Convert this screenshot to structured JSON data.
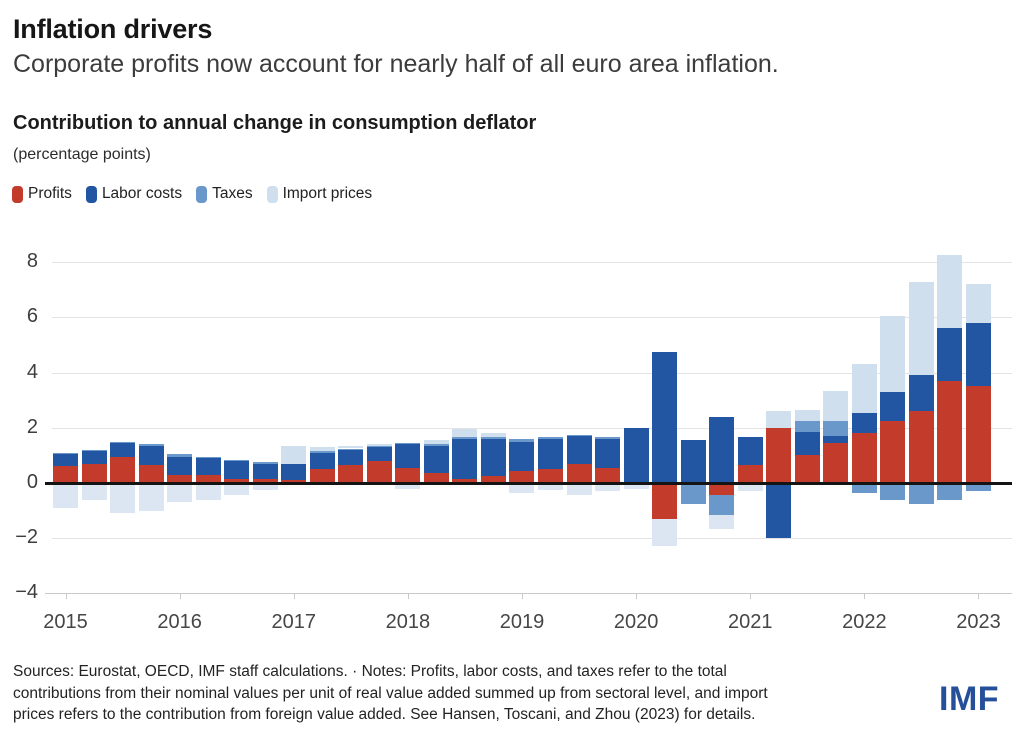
{
  "header": {
    "title": "Inflation drivers",
    "subtitle": "Corporate profits now account for nearly half of all euro area inflation."
  },
  "chart_header": {
    "title": "Contribution to annual change in consumption deflator",
    "unit_note": "(percentage points)"
  },
  "legend": [
    {
      "label": "Profits",
      "color": "#c23b2b"
    },
    {
      "label": "Labor costs",
      "color": "#2256a3"
    },
    {
      "label": "Taxes",
      "color": "#6b98cb"
    },
    {
      "label": "Import prices",
      "color": "#cfdfee"
    }
  ],
  "chart_data": {
    "type": "bar",
    "stacked": true,
    "title": "Contribution to annual change in consumption deflator",
    "ylabel": "(percentage points)",
    "ylim": [
      -4,
      8.6
    ],
    "yticks": [
      8,
      6,
      4,
      2,
      0,
      -2,
      -4
    ],
    "xticks": [
      "2015",
      "2016",
      "2017",
      "2018",
      "2019",
      "2020",
      "2021",
      "2022",
      "2023"
    ],
    "grid": true,
    "legend_position": "top",
    "x": [
      "2015Q1",
      "2015Q2",
      "2015Q3",
      "2015Q4",
      "2016Q1",
      "2016Q2",
      "2016Q3",
      "2016Q4",
      "2017Q1",
      "2017Q2",
      "2017Q3",
      "2017Q4",
      "2018Q1",
      "2018Q2",
      "2018Q3",
      "2018Q4",
      "2019Q1",
      "2019Q2",
      "2019Q3",
      "2019Q4",
      "2020Q1",
      "2020Q2",
      "2020Q3",
      "2020Q4",
      "2021Q1",
      "2021Q2",
      "2021Q3",
      "2021Q4",
      "2022Q1",
      "2022Q2",
      "2022Q3",
      "2022Q4",
      "2023Q1"
    ],
    "series": [
      {
        "name": "Profits",
        "color": "#c23b2b",
        "values": [
          0.6,
          0.7,
          0.95,
          0.65,
          0.3,
          0.3,
          0.15,
          0.15,
          0.1,
          0.5,
          0.65,
          0.8,
          0.55,
          0.35,
          0.15,
          0.25,
          0.45,
          0.5,
          0.7,
          0.55,
          0.05,
          -1.3,
          0,
          -0.45,
          0.65,
          2.0,
          1.0,
          1.45,
          1.8,
          2.25,
          2.6,
          3.7,
          3.5
        ]
      },
      {
        "name": "Labor costs",
        "color": "#2256a3",
        "values": [
          0.45,
          0.45,
          0.5,
          0.7,
          0.65,
          0.6,
          0.65,
          0.55,
          0.6,
          0.6,
          0.55,
          0.5,
          0.85,
          1.0,
          1.45,
          1.35,
          1.05,
          1.1,
          1.0,
          1.05,
          1.95,
          4.75,
          1.55,
          2.4,
          1.0,
          -2.0,
          0.85,
          0.25,
          0.75,
          1.05,
          1.3,
          1.9,
          2.3
        ]
      },
      {
        "name": "Taxes",
        "color": "#6b98cb",
        "values": [
          0.05,
          0.05,
          0.05,
          0.05,
          0.1,
          0.05,
          0.05,
          0.05,
          0,
          0.05,
          0.05,
          0.05,
          0.05,
          0.05,
          0.05,
          0.05,
          0.1,
          0.05,
          0.05,
          0.05,
          0,
          0,
          -0.75,
          -0.7,
          0,
          0,
          0.4,
          0.55,
          -0.35,
          -0.6,
          -0.75,
          -0.6,
          -0.3
        ]
      },
      {
        "name": "Import prices",
        "color": "#cfdfee",
        "neg_color": "#dbe6f2",
        "values": [
          -0.9,
          -0.6,
          -1.1,
          -1.0,
          -0.7,
          -0.6,
          -0.45,
          -0.25,
          0.65,
          0.15,
          0.1,
          0.05,
          -0.2,
          0.15,
          0.3,
          0.15,
          -0.35,
          -0.25,
          -0.45,
          -0.3,
          -0.2,
          -1.0,
          0,
          -0.5,
          -0.3,
          0.6,
          0.4,
          1.1,
          1.75,
          2.75,
          3.4,
          2.65,
          1.4
        ]
      }
    ]
  },
  "footer": {
    "lines": [
      "Sources: Eurostat, OECD, IMF staff calculations. · Notes: Profits, labor costs, and taxes refer to the total",
      "contributions from their nominal values per unit of real value added summed up from sectoral level, and import",
      "prices refers to the contribution from foreign value added. See Hansen, Toscani, and Zhou (2023) for details."
    ]
  },
  "logo": {
    "text": "IMF",
    "color": "#254f99"
  }
}
